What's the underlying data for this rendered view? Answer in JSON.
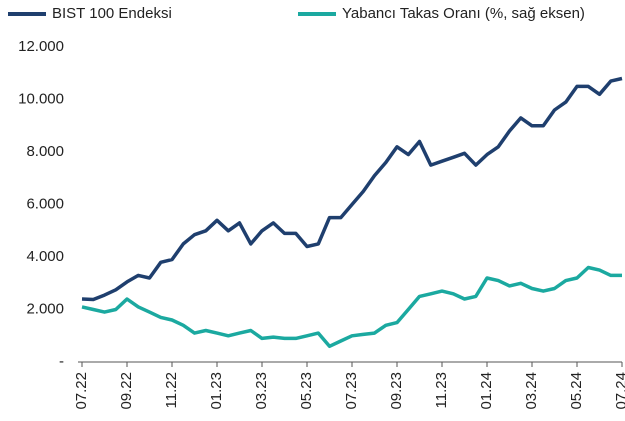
{
  "chart_data": {
    "type": "line",
    "categories": [
      "07.22",
      null,
      null,
      null,
      "09.22",
      null,
      null,
      null,
      "11.22",
      null,
      null,
      null,
      "01.23",
      null,
      null,
      null,
      "03.23",
      null,
      null,
      null,
      "05.23",
      null,
      null,
      null,
      "07.23",
      null,
      null,
      null,
      "09.23",
      null,
      null,
      null,
      "11.23",
      null,
      null,
      null,
      "01.24",
      null,
      null,
      null,
      "03.24",
      null,
      null,
      null,
      "05.24",
      null,
      null,
      null,
      "07.24"
    ],
    "series": [
      {
        "name": "BIST 100 Endeksi",
        "color": "#1f3f6e",
        "values": [
          2400,
          2380,
          2550,
          2750,
          3050,
          3300,
          3200,
          3800,
          3900,
          4500,
          4850,
          5000,
          5400,
          5000,
          5300,
          4500,
          5000,
          5300,
          4900,
          4900,
          4400,
          4500,
          5500,
          5500,
          6000,
          6500,
          7100,
          7600,
          8200,
          7900,
          8400,
          7500,
          7650,
          7800,
          7950,
          7500,
          7900,
          8200,
          8800,
          9300,
          9000,
          9000,
          9600,
          9900,
          10500,
          10500,
          10200,
          10700,
          10800
        ]
      },
      {
        "name": "Yabancı Takas Oranı (%, sağ eksen)",
        "color": "#1ba9a0",
        "axis": "y2",
        "values": [
          21,
          20,
          19,
          20,
          24,
          21,
          19,
          17,
          16,
          14,
          11,
          12,
          11,
          10,
          11,
          12,
          9,
          9.5,
          9,
          9,
          10,
          11,
          6,
          8,
          10,
          10.5,
          11,
          14,
          15,
          20,
          25,
          26,
          27,
          26,
          24,
          25,
          32,
          31,
          29,
          30,
          28,
          27,
          28,
          31,
          32,
          36,
          35,
          33,
          33
        ]
      }
    ],
    "ylim": [
      0,
      12000
    ],
    "yticks": [
      {
        "value": 0,
        "label": "-"
      },
      {
        "value": 2000,
        "label": "2.000"
      },
      {
        "value": 4000,
        "label": "4.000"
      },
      {
        "value": 6000,
        "label": "6.000"
      },
      {
        "value": 8000,
        "label": "8.000"
      },
      {
        "value": 10000,
        "label": "10.000"
      },
      {
        "value": 12000,
        "label": "12.000"
      }
    ],
    "y2lim": [
      0,
      120
    ],
    "legend": "top"
  }
}
